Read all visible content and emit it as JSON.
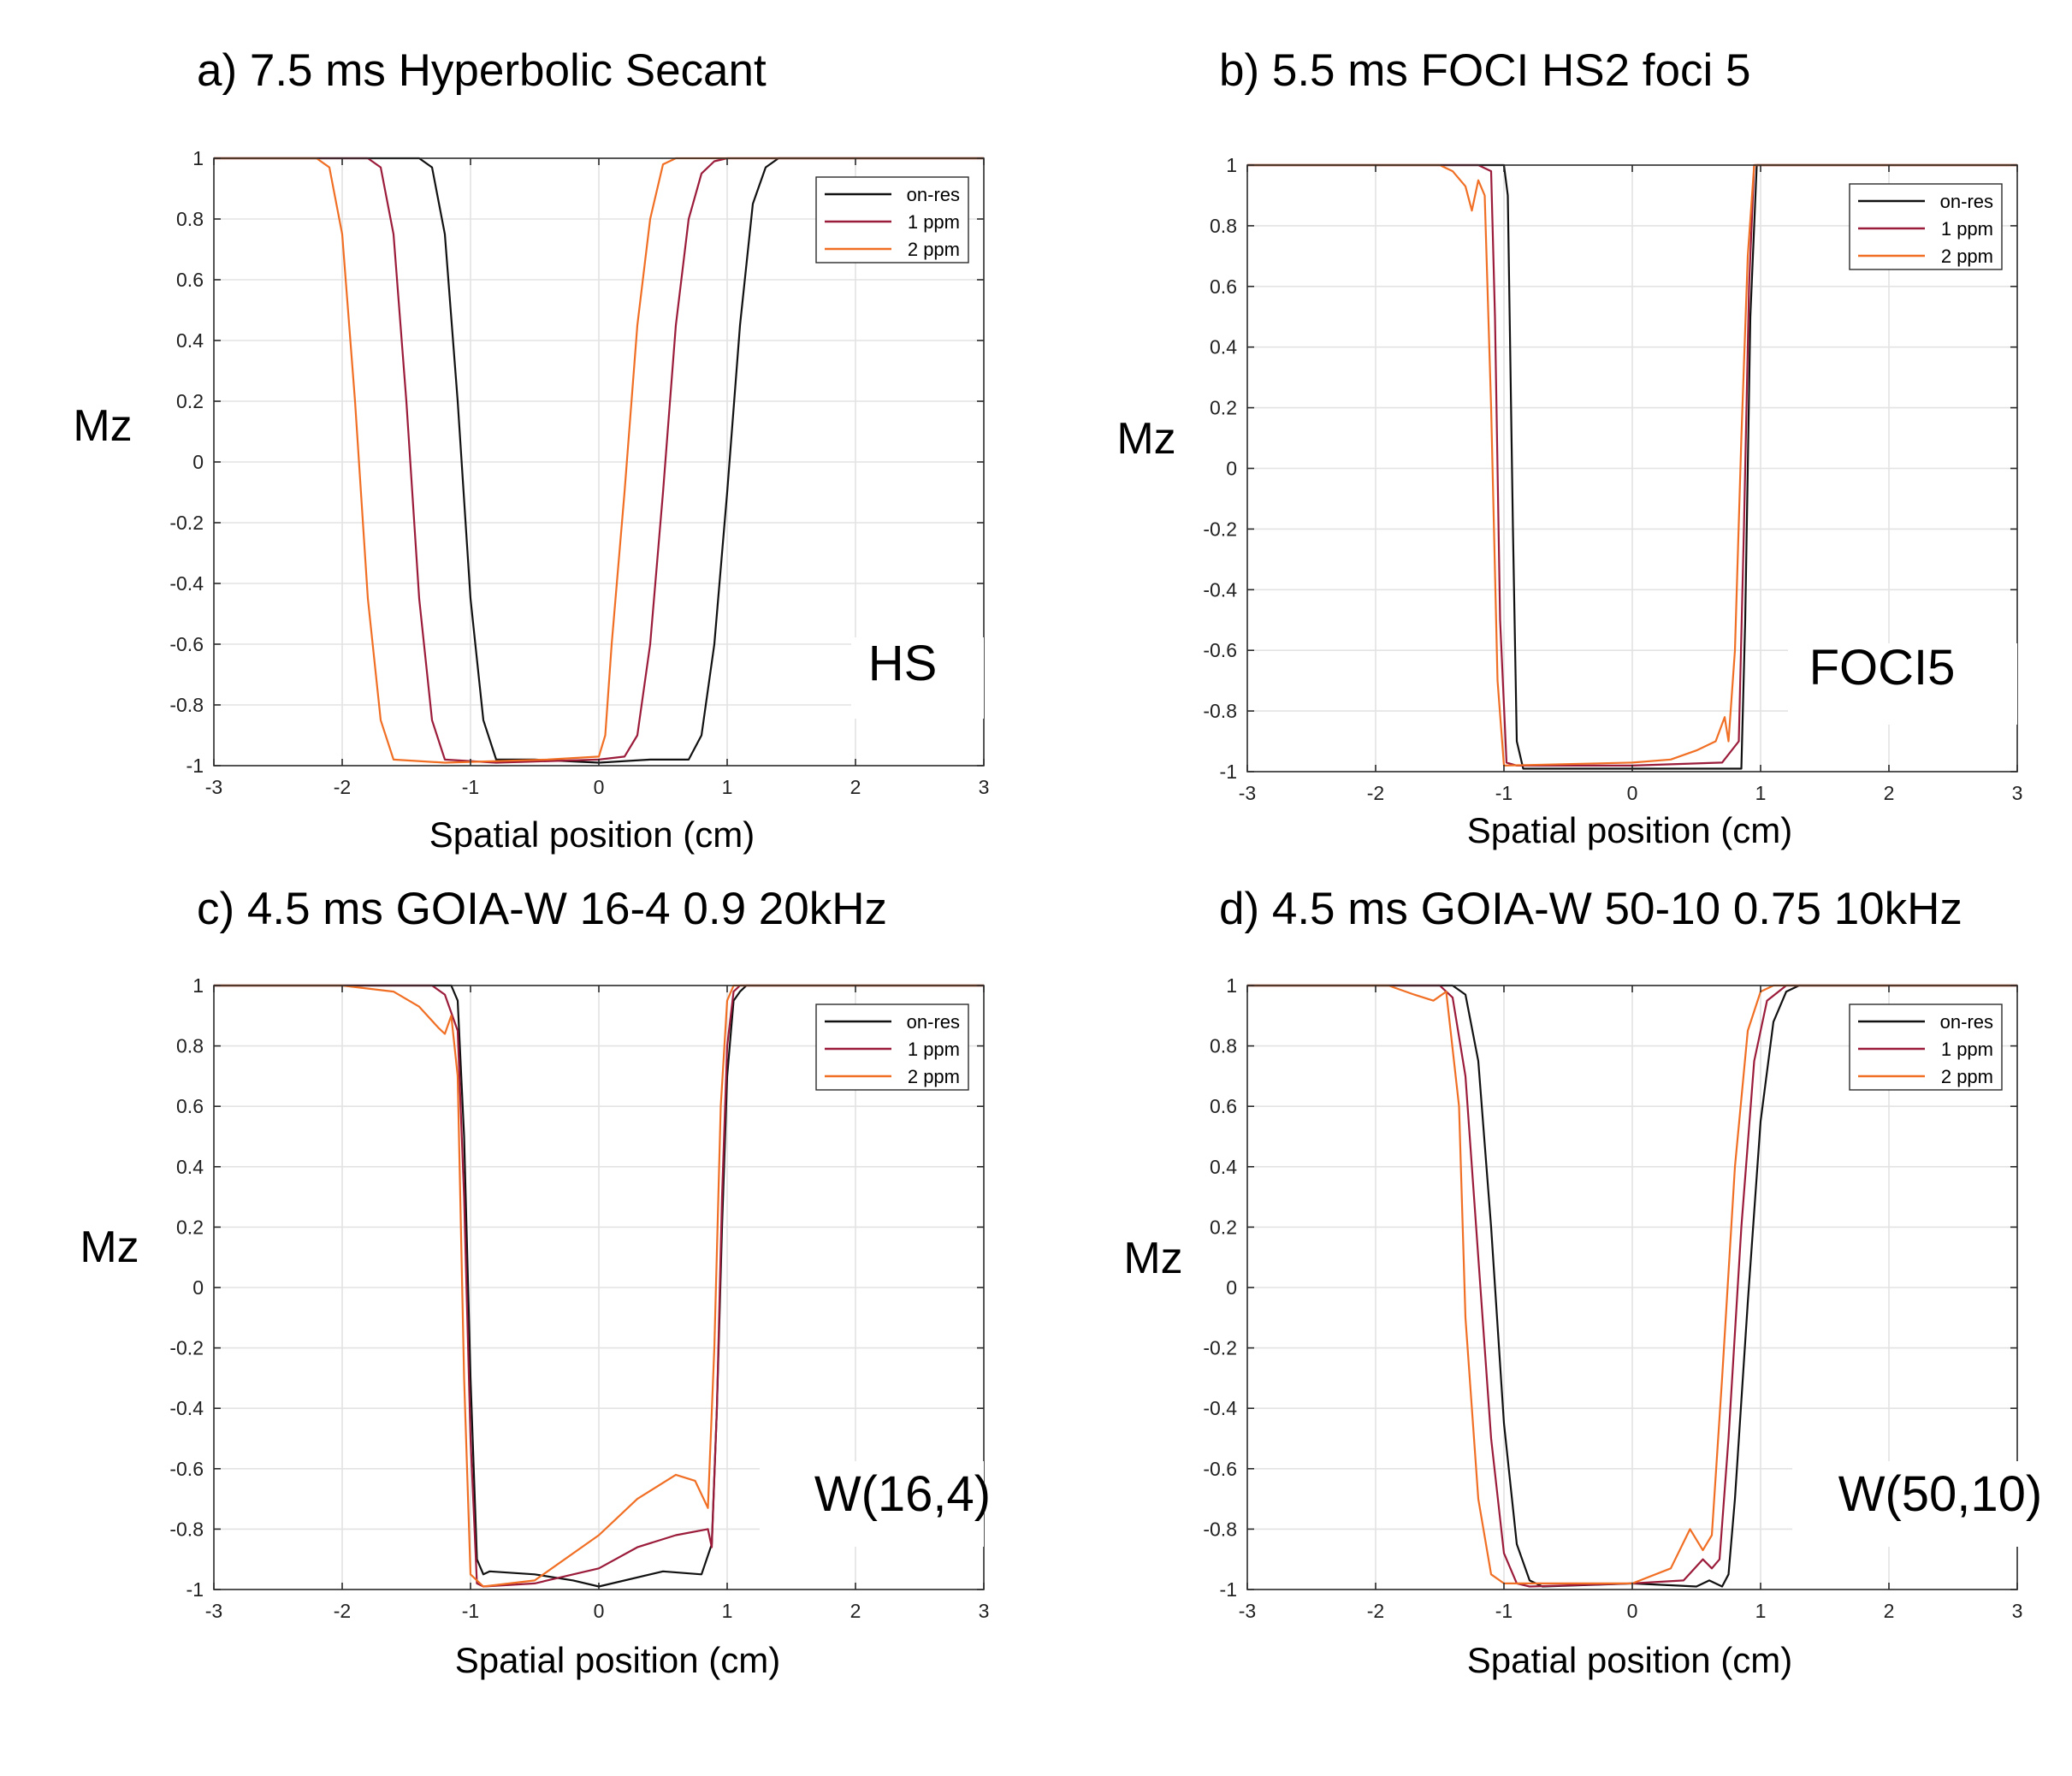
{
  "figure": {
    "colors": {
      "on-res": "#111111",
      "1 ppm": "#9b1b3a",
      "2 ppm": "#f06f24"
    },
    "legend_labels": [
      "on-res",
      "1 ppm",
      "2 ppm"
    ]
  },
  "chart_data": [
    {
      "type": "line",
      "panel": "a",
      "title": "a) 7.5 ms Hyperbolic Secant",
      "xlabel": "Spatial position (cm)",
      "ylabel": "Mz",
      "annotation": "HS",
      "xlim": [
        -3,
        3
      ],
      "ylim": [
        -1,
        1
      ],
      "xticks": [
        "-3",
        "-2",
        "-1",
        "0",
        "1",
        "2",
        "3"
      ],
      "yticks": [
        "1",
        "0.8",
        "0.6",
        "0.4",
        "0.2",
        "0",
        "-0.2",
        "-0.4",
        "-0.6",
        "-0.8",
        "-1"
      ],
      "grid": true,
      "legend_position": "top-right",
      "series": [
        {
          "name": "on-res",
          "x": [
            -3,
            -1.4,
            -1.3,
            -1.2,
            -1.1,
            -1.0,
            -0.9,
            -0.8,
            -0.5,
            0,
            0.4,
            0.7,
            0.8,
            0.9,
            1.0,
            1.1,
            1.2,
            1.3,
            1.4,
            3
          ],
          "y": [
            1,
            1,
            0.97,
            0.75,
            0.2,
            -0.45,
            -0.85,
            -0.98,
            -0.98,
            -0.99,
            -0.98,
            -0.98,
            -0.9,
            -0.6,
            -0.1,
            0.45,
            0.85,
            0.97,
            1,
            1
          ]
        },
        {
          "name": "1 ppm",
          "x": [
            -3,
            -1.8,
            -1.7,
            -1.6,
            -1.5,
            -1.4,
            -1.3,
            -1.2,
            -0.8,
            0,
            0.2,
            0.3,
            0.4,
            0.5,
            0.6,
            0.7,
            0.8,
            0.9,
            1.0,
            3
          ],
          "y": [
            1,
            1,
            0.97,
            0.75,
            0.2,
            -0.45,
            -0.85,
            -0.98,
            -0.99,
            -0.98,
            -0.97,
            -0.9,
            -0.6,
            -0.1,
            0.45,
            0.8,
            0.95,
            0.99,
            1,
            1
          ]
        },
        {
          "name": "2 ppm",
          "x": [
            -3,
            -2.2,
            -2.1,
            -2.0,
            -1.9,
            -1.8,
            -1.7,
            -1.6,
            -1.2,
            -0.4,
            0,
            0.05,
            0.1,
            0.2,
            0.3,
            0.4,
            0.5,
            0.6,
            3
          ],
          "y": [
            1,
            1,
            0.97,
            0.75,
            0.2,
            -0.45,
            -0.85,
            -0.98,
            -0.99,
            -0.98,
            -0.97,
            -0.9,
            -0.6,
            -0.1,
            0.45,
            0.8,
            0.98,
            1,
            1
          ]
        }
      ]
    },
    {
      "type": "line",
      "panel": "b",
      "title": "b) 5.5 ms FOCI HS2 foci 5",
      "xlabel": "Spatial position (cm)",
      "ylabel": "Mz",
      "annotation": "FOCI5",
      "xlim": [
        -3,
        3
      ],
      "ylim": [
        -1,
        1
      ],
      "xticks": [
        "-3",
        "-2",
        "-1",
        "0",
        "1",
        "2",
        "3"
      ],
      "yticks": [
        "1",
        "0.8",
        "0.6",
        "0.4",
        "0.2",
        "0",
        "-0.2",
        "-0.4",
        "-0.6",
        "-0.8",
        "-1"
      ],
      "grid": true,
      "legend_position": "top-right",
      "series": [
        {
          "name": "on-res",
          "x": [
            -3,
            -1.0,
            -0.97,
            -0.93,
            -0.9,
            -0.85,
            0,
            0.75,
            0.85,
            0.88,
            0.92,
            0.97,
            3
          ],
          "y": [
            1,
            1,
            0.9,
            -0.2,
            -0.9,
            -0.99,
            -0.99,
            -0.99,
            -0.99,
            -0.5,
            0.5,
            1,
            1
          ]
        },
        {
          "name": "1 ppm",
          "x": [
            -3,
            -1.2,
            -1.1,
            -1.07,
            -1.03,
            -0.98,
            -0.9,
            0,
            0.7,
            0.83,
            0.87,
            0.91,
            0.95,
            3
          ],
          "y": [
            1,
            1,
            0.98,
            0.5,
            -0.5,
            -0.97,
            -0.98,
            -0.98,
            -0.97,
            -0.9,
            -0.2,
            0.6,
            1,
            1
          ]
        },
        {
          "name": "2 ppm",
          "x": [
            -3,
            -1.5,
            -1.4,
            -1.3,
            -1.25,
            -1.2,
            -1.15,
            -1.1,
            -1.05,
            -1.0,
            0,
            0.3,
            0.5,
            0.65,
            0.72,
            0.75,
            0.8,
            0.85,
            0.9,
            0.95,
            3
          ],
          "y": [
            1,
            1,
            0.98,
            0.93,
            0.85,
            0.95,
            0.9,
            0.2,
            -0.7,
            -0.98,
            -0.97,
            -0.96,
            -0.93,
            -0.9,
            -0.82,
            -0.9,
            -0.6,
            0.1,
            0.7,
            1,
            1
          ]
        }
      ]
    },
    {
      "type": "line",
      "panel": "c",
      "title": "c) 4.5 ms GOIA-W 16-4 0.9 20kHz",
      "xlabel": "Spatial position (cm)",
      "ylabel": "Mz",
      "annotation": "W(16,4)",
      "xlim": [
        -3,
        3
      ],
      "ylim": [
        -1,
        1
      ],
      "xticks": [
        "-3",
        "-2",
        "-1",
        "0",
        "1",
        "2",
        "3"
      ],
      "yticks": [
        "1",
        "0.8",
        "0.6",
        "0.4",
        "0.2",
        "0",
        "-0.2",
        "-0.4",
        "-0.6",
        "-0.8",
        "-1"
      ],
      "grid": true,
      "legend_position": "top-right",
      "series": [
        {
          "name": "on-res",
          "x": [
            -3,
            -1.15,
            -1.1,
            -1.05,
            -1.0,
            -0.95,
            -0.9,
            -0.85,
            -0.5,
            -0.2,
            0,
            0.5,
            0.8,
            0.88,
            0.92,
            0.96,
            1.0,
            1.05,
            1.1,
            1.15,
            3
          ],
          "y": [
            1,
            1,
            0.95,
            0.5,
            -0.3,
            -0.9,
            -0.95,
            -0.94,
            -0.95,
            -0.97,
            -0.99,
            -0.94,
            -0.95,
            -0.85,
            -0.4,
            0.2,
            0.7,
            0.95,
            0.98,
            1,
            1
          ]
        },
        {
          "name": "1 ppm",
          "x": [
            -3,
            -1.3,
            -1.2,
            -1.1,
            -1.05,
            -1.0,
            -0.95,
            -0.9,
            -0.5,
            0,
            0.3,
            0.6,
            0.85,
            0.88,
            0.92,
            0.96,
            1.0,
            1.05,
            1.1,
            3
          ],
          "y": [
            1,
            1,
            0.97,
            0.85,
            0.3,
            -0.5,
            -0.98,
            -0.99,
            -0.98,
            -0.93,
            -0.86,
            -0.82,
            -0.8,
            -0.86,
            -0.4,
            0.3,
            0.8,
            0.98,
            1,
            1
          ]
        },
        {
          "name": "2 ppm",
          "x": [
            -3,
            -2.0,
            -1.6,
            -1.4,
            -1.25,
            -1.2,
            -1.15,
            -1.1,
            -1.05,
            -1.0,
            -0.9,
            -0.5,
            0,
            0.3,
            0.6,
            0.75,
            0.85,
            0.9,
            0.95,
            1.0,
            1.05,
            3
          ],
          "y": [
            1,
            1,
            0.98,
            0.93,
            0.86,
            0.84,
            0.9,
            0.7,
            -0.3,
            -0.95,
            -0.99,
            -0.97,
            -0.82,
            -0.7,
            -0.62,
            -0.64,
            -0.73,
            -0.2,
            0.6,
            0.95,
            1,
            1
          ]
        }
      ]
    },
    {
      "type": "line",
      "panel": "d",
      "title": "d) 4.5 ms GOIA-W 50-10 0.75 10kHz",
      "xlabel": "Spatial position (cm)",
      "ylabel": "Mz",
      "annotation": "W(50,10)",
      "xlim": [
        -3,
        3
      ],
      "ylim": [
        -1,
        1
      ],
      "xticks": [
        "-3",
        "-2",
        "-1",
        "0",
        "1",
        "2",
        "3"
      ],
      "yticks": [
        "1",
        "0.8",
        "0.6",
        "0.4",
        "0.2",
        "0",
        "-0.2",
        "-0.4",
        "-0.6",
        "-0.8",
        "-1"
      ],
      "grid": true,
      "legend_position": "top-right",
      "series": [
        {
          "name": "on-res",
          "x": [
            -3,
            -1.4,
            -1.3,
            -1.2,
            -1.1,
            -1.0,
            -0.9,
            -0.8,
            -0.7,
            0,
            0.5,
            0.6,
            0.7,
            0.75,
            0.8,
            0.9,
            1.0,
            1.1,
            1.2,
            1.3,
            3
          ],
          "y": [
            1,
            1,
            0.97,
            0.75,
            0.2,
            -0.45,
            -0.85,
            -0.97,
            -0.99,
            -0.98,
            -0.99,
            -0.97,
            -0.99,
            -0.95,
            -0.7,
            -0.05,
            0.55,
            0.88,
            0.98,
            1,
            1
          ]
        },
        {
          "name": "1 ppm",
          "x": [
            -3,
            -1.5,
            -1.4,
            -1.3,
            -1.2,
            -1.1,
            -1.0,
            -0.9,
            -0.8,
            0,
            0.4,
            0.55,
            0.62,
            0.68,
            0.75,
            0.85,
            0.95,
            1.05,
            1.2,
            3
          ],
          "y": [
            1,
            1,
            0.96,
            0.7,
            0.1,
            -0.5,
            -0.88,
            -0.98,
            -0.99,
            -0.98,
            -0.97,
            -0.9,
            -0.93,
            -0.9,
            -0.5,
            0.2,
            0.75,
            0.95,
            1,
            1
          ]
        },
        {
          "name": "2 ppm",
          "x": [
            -3,
            -1.9,
            -1.7,
            -1.55,
            -1.45,
            -1.35,
            -1.3,
            -1.2,
            -1.1,
            -1.0,
            -0.9,
            0,
            0.3,
            0.45,
            0.55,
            0.62,
            0.7,
            0.8,
            0.9,
            1.0,
            1.1,
            3
          ],
          "y": [
            1,
            1,
            0.97,
            0.95,
            0.98,
            0.6,
            -0.1,
            -0.7,
            -0.95,
            -0.98,
            -0.98,
            -0.98,
            -0.93,
            -0.8,
            -0.87,
            -0.82,
            -0.3,
            0.4,
            0.85,
            0.98,
            1,
            1
          ]
        }
      ]
    }
  ]
}
